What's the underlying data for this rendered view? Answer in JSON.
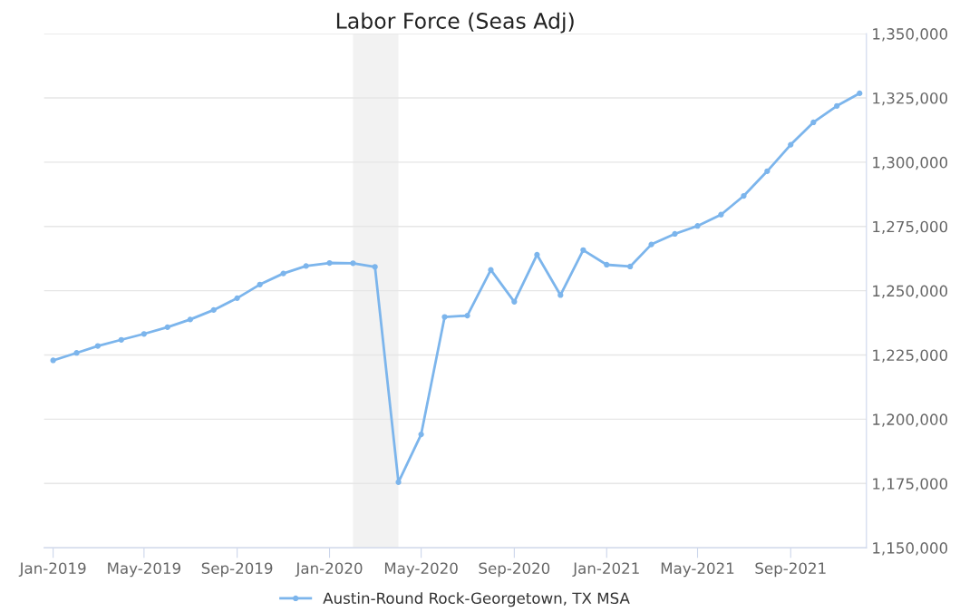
{
  "chart_data": {
    "type": "line",
    "title": "Labor Force (Seas Adj)",
    "x": [
      "2019-01",
      "2019-02",
      "2019-03",
      "2019-04",
      "2019-05",
      "2019-06",
      "2019-07",
      "2019-08",
      "2019-09",
      "2019-10",
      "2019-11",
      "2019-12",
      "2020-01",
      "2020-02",
      "2020-03",
      "2020-04",
      "2020-05",
      "2020-06",
      "2020-07",
      "2020-08",
      "2020-09",
      "2020-10",
      "2020-11",
      "2020-12",
      "2021-01",
      "2021-02",
      "2021-03",
      "2021-04",
      "2021-05",
      "2021-06",
      "2021-07",
      "2021-08",
      "2021-09",
      "2021-10",
      "2021-11",
      "2021-12"
    ],
    "series": [
      {
        "name": "Austin-Round Rock-Georgetown, TX MSA",
        "color": "#7cb5ec",
        "values": [
          1222900,
          1225800,
          1228500,
          1230900,
          1233200,
          1235800,
          1238800,
          1242500,
          1247100,
          1252400,
          1256700,
          1259600,
          1260800,
          1260700,
          1259300,
          1175500,
          1194100,
          1239800,
          1240300,
          1258100,
          1245700,
          1264000,
          1248300,
          1265800,
          1260100,
          1259400,
          1268000,
          1272100,
          1275200,
          1279600,
          1286900,
          1296500,
          1306800,
          1315500,
          1321900,
          1326800
        ]
      }
    ],
    "xlim": [
      "2018-12-20",
      "2021-12-10"
    ],
    "xticks": [
      {
        "value": "2019-01",
        "label": "Jan-2019"
      },
      {
        "value": "2019-05",
        "label": "May-2019"
      },
      {
        "value": "2019-09",
        "label": "Sep-2019"
      },
      {
        "value": "2020-01",
        "label": "Jan-2020"
      },
      {
        "value": "2020-05",
        "label": "May-2020"
      },
      {
        "value": "2020-09",
        "label": "Sep-2020"
      },
      {
        "value": "2021-01",
        "label": "Jan-2021"
      },
      {
        "value": "2021-05",
        "label": "May-2021"
      },
      {
        "value": "2021-09",
        "label": "Sep-2021"
      }
    ],
    "ylim": [
      1150000,
      1350000
    ],
    "yticks": [
      {
        "value": 1150000,
        "label": "1,150,000"
      },
      {
        "value": 1175000,
        "label": "1,175,000"
      },
      {
        "value": 1200000,
        "label": "1,200,000"
      },
      {
        "value": 1225000,
        "label": "1,225,000"
      },
      {
        "value": 1250000,
        "label": "1,250,000"
      },
      {
        "value": 1275000,
        "label": "1,275,000"
      },
      {
        "value": 1300000,
        "label": "1,300,000"
      },
      {
        "value": 1325000,
        "label": "1,325,000"
      },
      {
        "value": 1350000,
        "label": "1,350,000"
      }
    ],
    "bands": [
      {
        "axis": "x",
        "from": "2020-02",
        "to": "2020-04",
        "color": "#f2f2f2"
      }
    ],
    "grid": "y",
    "legend": "bottom",
    "marker": "circle",
    "line_style": "solid"
  }
}
